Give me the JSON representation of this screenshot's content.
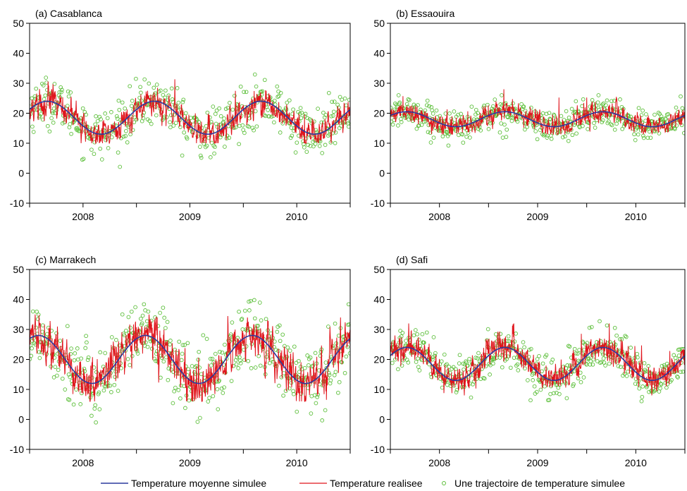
{
  "colors": {
    "mean": "#2b3a9e",
    "realized": "#e0141c",
    "simulated": "#5cbf3a"
  },
  "legend": {
    "items": [
      {
        "key": "mean",
        "label": "Temperature moyenne simulee",
        "marker": "line",
        "color": "#2b3a9e"
      },
      {
        "key": "realized",
        "label": "Temperature realisee",
        "marker": "line",
        "color": "#e0141c"
      },
      {
        "key": "simulated",
        "label": "Une trajectoire de temperature simulee",
        "marker": "circle",
        "color": "#5cbf3a"
      }
    ]
  },
  "chart_data": [
    {
      "type": "line",
      "title": "(a) Casablanca",
      "xlabel": "",
      "ylabel": "",
      "xlim": [
        2007.5,
        2010.5
      ],
      "ylim": [
        -10,
        50
      ],
      "yticks": [
        -10,
        0,
        10,
        20,
        30,
        40,
        50
      ],
      "xtick_labels": [
        "2008",
        "2009",
        "2010"
      ],
      "xtick_label_positions": [
        2008,
        2009,
        2010
      ],
      "xtick_marks": [
        2007.5,
        2008,
        2008.5,
        2009,
        2009.5,
        2010,
        2010.5
      ],
      "series": [
        {
          "key": "mean",
          "name": "Temperature moyenne simulee",
          "model": "sinusoid",
          "mean": 18.5,
          "amplitude": 5.5,
          "peak_month": 8.5
        },
        {
          "key": "realized",
          "name": "Temperature realisee",
          "approx_range": [
            10,
            32
          ],
          "noise_sd": 2
        },
        {
          "key": "simulated",
          "name": "Une trajectoire de temperature simulee",
          "approx_range": [
            -3,
            39
          ],
          "noise_sd": 4
        }
      ]
    },
    {
      "type": "line",
      "title": "(b) Essaouira",
      "xlabel": "",
      "ylabel": "",
      "xlim": [
        2007.5,
        2010.5
      ],
      "ylim": [
        -10,
        50
      ],
      "yticks": [
        -10,
        0,
        10,
        20,
        30,
        40,
        50
      ],
      "xtick_labels": [
        "2008",
        "2009",
        "2010"
      ],
      "xtick_label_positions": [
        2008,
        2009,
        2010
      ],
      "xtick_marks": [
        2007.5,
        2008,
        2008.5,
        2009,
        2009.5,
        2010,
        2010.5
      ],
      "series": [
        {
          "key": "mean",
          "name": "Temperature moyenne simulee",
          "model": "sinusoid",
          "mean": 18,
          "amplitude": 2.5,
          "peak_month": 8.5
        },
        {
          "key": "realized",
          "name": "Temperature realisee",
          "approx_range": [
            13,
            28
          ],
          "noise_sd": 1.4
        },
        {
          "key": "simulated",
          "name": "Une trajectoire de temperature simulee",
          "approx_range": [
            9,
            26
          ],
          "noise_sd": 2.6
        }
      ]
    },
    {
      "type": "line",
      "title": "(c) Marrakech",
      "xlabel": "",
      "ylabel": "",
      "xlim": [
        2007.5,
        2010.5
      ],
      "ylim": [
        -10,
        50
      ],
      "yticks": [
        -10,
        0,
        10,
        20,
        30,
        40,
        50
      ],
      "xtick_labels": [
        "2008",
        "2009",
        "2010"
      ],
      "xtick_label_positions": [
        2008,
        2009,
        2010
      ],
      "xtick_marks": [
        2007.5,
        2008,
        2008.5,
        2009,
        2009.5,
        2010,
        2010.5
      ],
      "series": [
        {
          "key": "mean",
          "name": "Temperature moyenne simulee",
          "model": "sinusoid",
          "mean": 20,
          "amplitude": 8,
          "peak_month": 7.5
        },
        {
          "key": "realized",
          "name": "Temperature realisee",
          "approx_range": [
            6,
            35
          ],
          "noise_sd": 3
        },
        {
          "key": "simulated",
          "name": "Une trajectoire de temperature simulee",
          "approx_range": [
            -7,
            42
          ],
          "noise_sd": 6
        }
      ]
    },
    {
      "type": "line",
      "title": "(d) Safi",
      "xlabel": "",
      "ylabel": "",
      "xlim": [
        2007.5,
        2010.5
      ],
      "ylim": [
        -10,
        50
      ],
      "yticks": [
        -10,
        0,
        10,
        20,
        30,
        40,
        50
      ],
      "xtick_labels": [
        "2008",
        "2009",
        "2010"
      ],
      "xtick_label_positions": [
        2008,
        2009,
        2010
      ],
      "xtick_marks": [
        2007.5,
        2008,
        2008.5,
        2009,
        2009.5,
        2010,
        2010.5
      ],
      "series": [
        {
          "key": "mean",
          "name": "Temperature moyenne simulee",
          "model": "sinusoid",
          "mean": 18.5,
          "amplitude": 5.5,
          "peak_month": 8.5
        },
        {
          "key": "realized",
          "name": "Temperature realisee",
          "approx_range": [
            8,
            32
          ],
          "noise_sd": 2
        },
        {
          "key": "simulated",
          "name": "Une trajectoire de temperature simulee",
          "approx_range": [
            3,
            34
          ],
          "noise_sd": 3.5
        }
      ]
    }
  ]
}
